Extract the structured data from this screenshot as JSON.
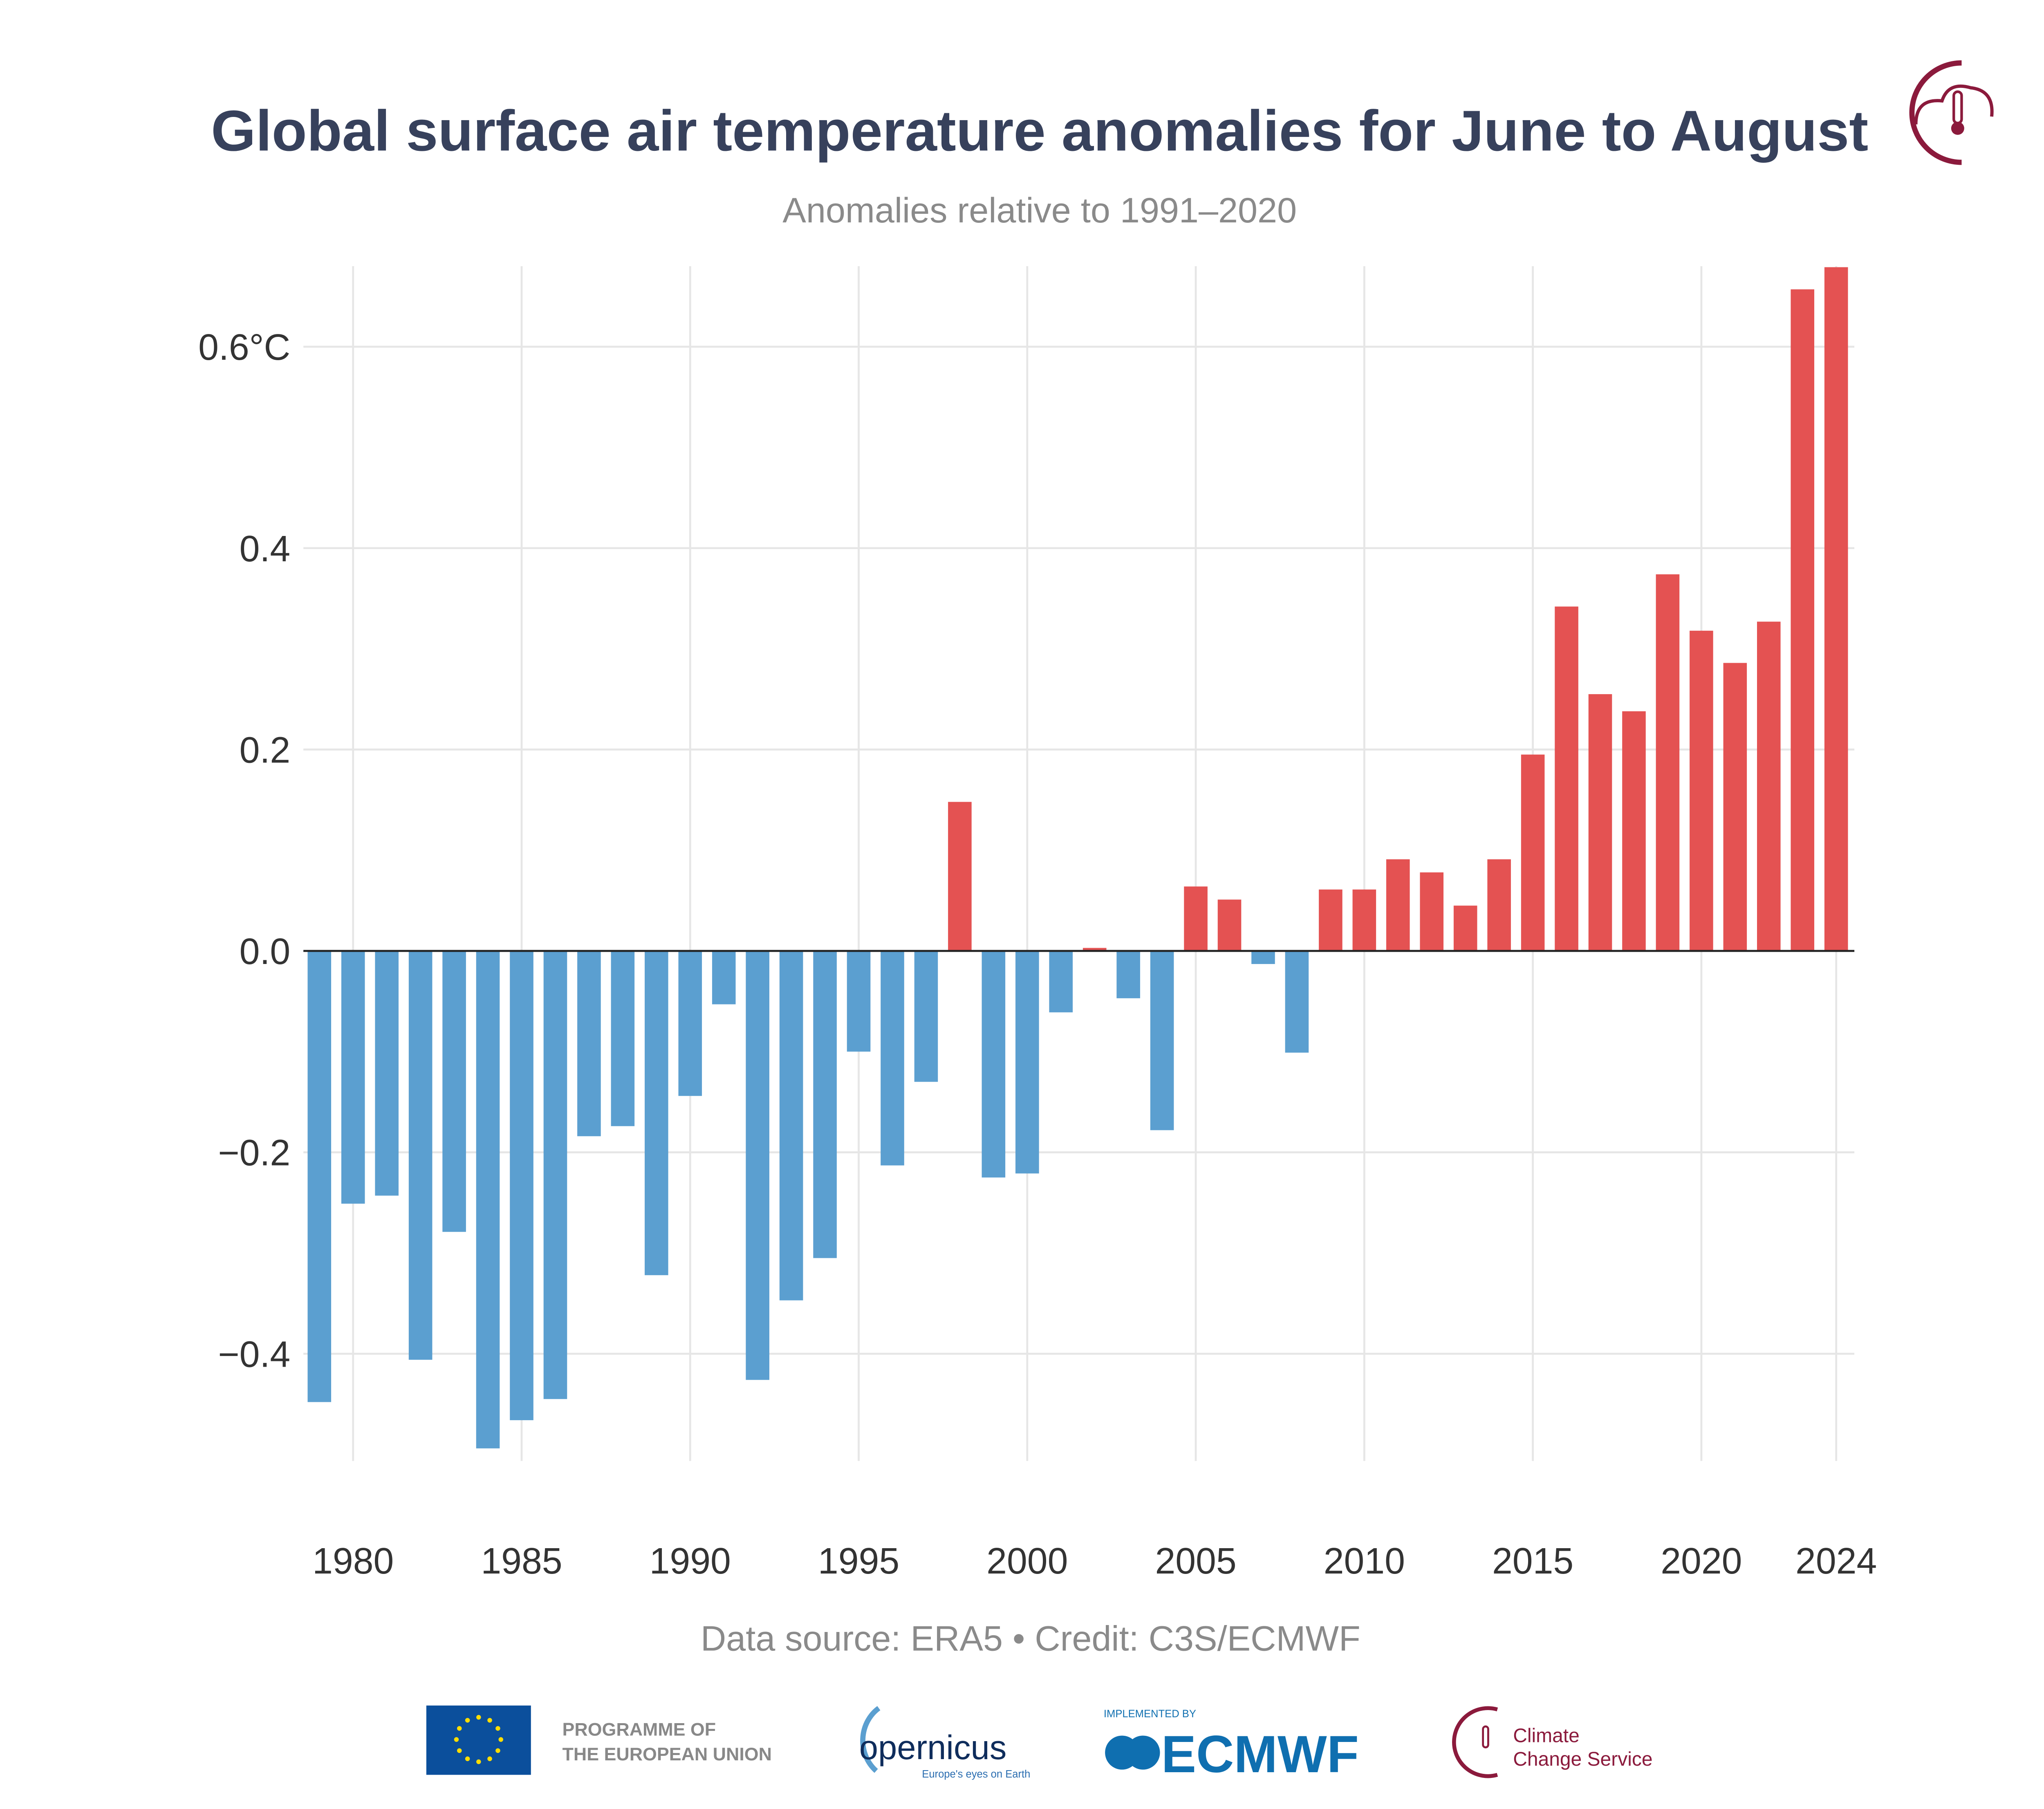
{
  "chart_data": {
    "type": "bar",
    "title": "Global surface air temperature anomalies for June to August",
    "subtitle": "Anomalies relative to 1991–2020",
    "xlabel": "",
    "ylabel": "",
    "ylim": [
      -0.5,
      0.68
    ],
    "yticks": [
      -0.4,
      -0.2,
      0.0,
      0.2,
      0.4,
      0.6
    ],
    "ytick_labels": [
      "−0.4",
      "−0.2",
      "0.0",
      "0.2",
      "0.4",
      "0.6°C"
    ],
    "xticks": [
      1980,
      1985,
      1990,
      1995,
      2000,
      2005,
      2010,
      2015,
      2020,
      2024
    ],
    "grid": true,
    "colors": {
      "positive": "#e45252",
      "negative": "#5b9fd0",
      "title": "#37415c"
    },
    "categories": [
      1979,
      1980,
      1981,
      1982,
      1983,
      1984,
      1985,
      1986,
      1987,
      1988,
      1989,
      1990,
      1991,
      1992,
      1993,
      1994,
      1995,
      1996,
      1997,
      1998,
      1999,
      2000,
      2001,
      2002,
      2003,
      2004,
      2005,
      2006,
      2007,
      2008,
      2009,
      2010,
      2011,
      2012,
      2013,
      2014,
      2015,
      2016,
      2017,
      2018,
      2019,
      2020,
      2021,
      2022,
      2023,
      2024
    ],
    "values": [
      -0.448,
      -0.251,
      -0.243,
      -0.406,
      -0.279,
      -0.494,
      -0.466,
      -0.445,
      -0.184,
      -0.174,
      -0.322,
      -0.144,
      -0.053,
      -0.426,
      -0.347,
      -0.305,
      -0.1,
      -0.213,
      -0.13,
      0.148,
      -0.225,
      -0.221,
      -0.061,
      0.003,
      -0.047,
      -0.178,
      0.064,
      0.051,
      -0.013,
      -0.101,
      0.061,
      0.061,
      0.091,
      0.078,
      0.045,
      0.091,
      0.195,
      0.342,
      0.255,
      0.238,
      0.374,
      0.318,
      0.286,
      0.327,
      0.657,
      0.679
    ]
  },
  "credit": "Data source: ERA5 • Credit: C3S/ECMWF",
  "logos": {
    "eu": "PROGRAMME OF THE EUROPEAN UNION",
    "eu_line1": "PROGRAMME OF",
    "eu_line2": "THE EUROPEAN UNION",
    "copernicus": "opernicus",
    "copernicus_tagline": "Europe's eyes on Earth",
    "ecmwf_top": "IMPLEMENTED BY",
    "ecmwf": "ECMWF",
    "c3s_line1": "Climate",
    "c3s_line2": "Change Service"
  }
}
